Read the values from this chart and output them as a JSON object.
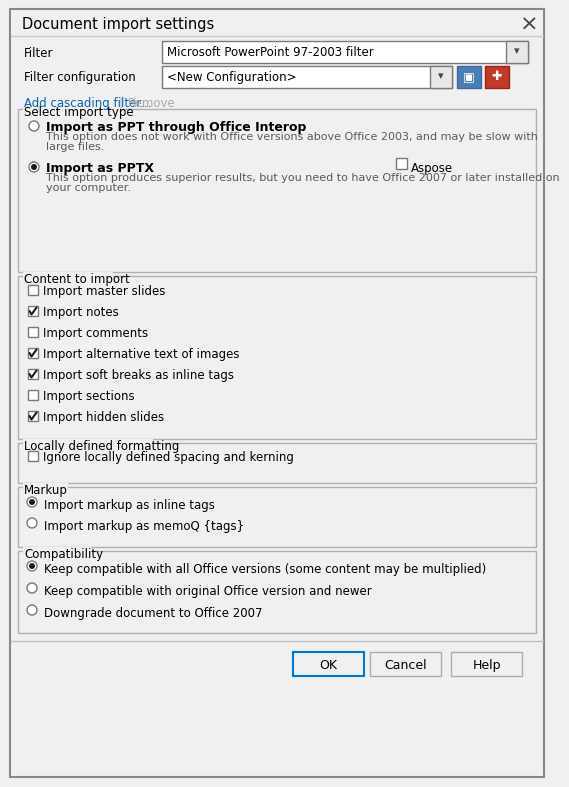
{
  "title": "Document import settings",
  "bg_color": "#f0f0f0",
  "white": "#ffffff",
  "filter_label": "Filter",
  "filter_value": "Microsoft PowerPoint 97-2003 filter",
  "filter_config_label": "Filter configuration",
  "filter_config_value": "<New Configuration>",
  "add_cascading": "Add cascading filter...",
  "remove": "Remove",
  "select_import_type_label": "Select import type",
  "radio1_label": "Import as PPT through Office Interop",
  "radio1_checked": false,
  "radio1_desc_line1": "This option does not work with Office versions above Office 2003, and may be slow with",
  "radio1_desc_line2": "large files.",
  "radio2_label": "Import as PPTX",
  "radio2_checked": true,
  "radio2_desc_line1": "This option produces superior results, but you need to have Office 2007 or later installed on",
  "radio2_desc_line2": "your computer.",
  "aspose_label": "Aspose",
  "aspose_checked": false,
  "content_label": "Content to import",
  "checkboxes": [
    {
      "label": "Import master slides",
      "checked": false
    },
    {
      "label": "Import notes",
      "checked": true
    },
    {
      "label": "Import comments",
      "checked": false
    },
    {
      "label": "Import alternative text of images",
      "checked": true
    },
    {
      "label": "Import soft breaks as inline tags",
      "checked": true
    },
    {
      "label": "Import sections",
      "checked": false
    },
    {
      "label": "Import hidden slides",
      "checked": true
    }
  ],
  "local_format_label": "Locally defined formatting",
  "local_checkbox": {
    "label": "Ignore locally defined spacing and kerning",
    "checked": false
  },
  "markup_label": "Markup",
  "markup_radios": [
    {
      "label": "Import markup as inline tags",
      "checked": true
    },
    {
      "label": "Import markup as memoQ {tags}",
      "checked": false
    }
  ],
  "compat_label": "Compatibility",
  "compat_radios": [
    {
      "label": "Keep compatible with all Office versions (some content may be multiplied)",
      "checked": true
    },
    {
      "label": "Keep compatible with original Office version and newer",
      "checked": false
    },
    {
      "label": "Downgrade document to Office 2007",
      "checked": false
    }
  ],
  "btn_ok": "OK",
  "btn_cancel": "Cancel",
  "btn_help": "Help",
  "link_color": "#0563c1",
  "text_color": "#000000",
  "desc_color": "#5a5a5a",
  "border_color": "#adadad",
  "check_color": "#1a1a1a",
  "section_border": "#b0b0b0",
  "btn_border_ok": "#0078d7",
  "btn_border_normal": "#adadad",
  "title_bg": "#f0f0f0",
  "icon_save_bg": "#4a7fb5",
  "icon_add_bg": "#c0392b",
  "highlight_2003": "#c00000",
  "highlight_2007": "#c00000"
}
